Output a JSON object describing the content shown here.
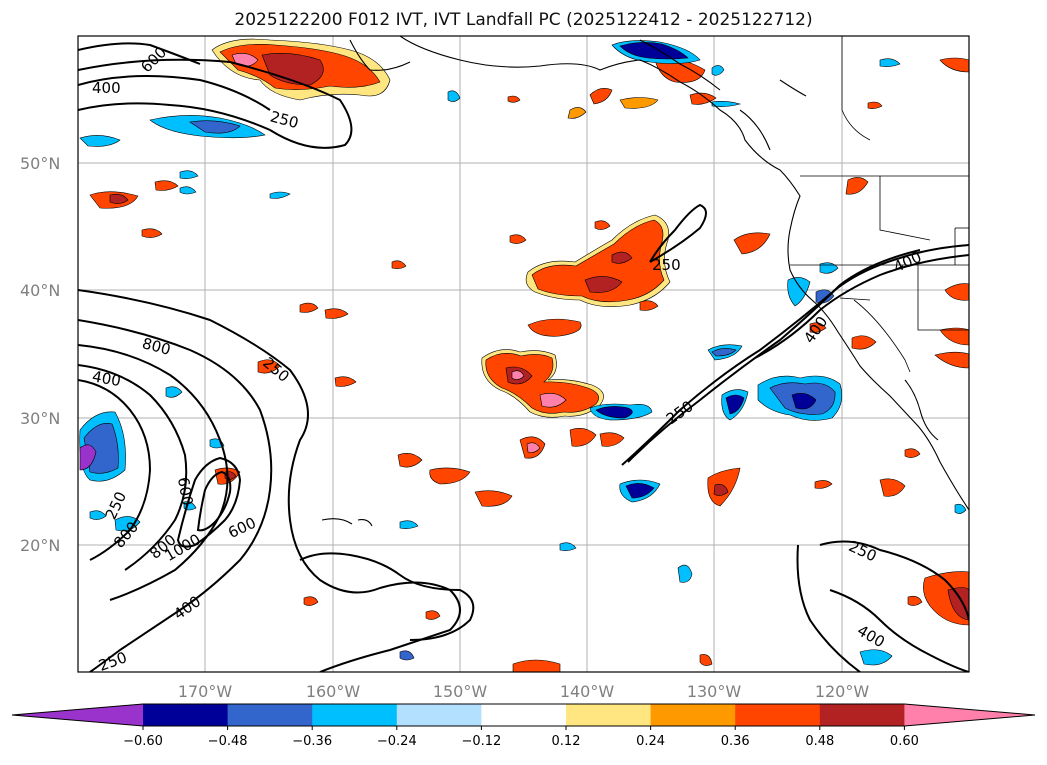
{
  "title": "2025122200 F012 IVT, IVT Landfall PC (2025122412 - 2025122712)",
  "lat_labels": [
    "50°N",
    "40°N",
    "30°N",
    "20°N"
  ],
  "lon_labels": [
    "170°W",
    "160°W",
    "150°W",
    "140°W",
    "130°W",
    "120°W"
  ],
  "colorbar": {
    "ticks": [
      "−0.60",
      "−0.48",
      "−0.36",
      "−0.24",
      "−0.12",
      "0.12",
      "0.24",
      "0.36",
      "0.48",
      "0.60"
    ],
    "colors": [
      "#9933cc",
      "#000099",
      "#3366cc",
      "#00bfff",
      "#b3e0ff",
      "#ffffff",
      "#ffe680",
      "#ff9900",
      "#ff4500",
      "#b22222",
      "#ff80aa"
    ]
  },
  "contour_labels": [
    "600",
    "400",
    "250",
    "250",
    "400",
    "400",
    "250",
    "800",
    "400",
    "250",
    "250",
    "600",
    "250",
    "800",
    "800",
    "1000",
    "600",
    "400",
    "250",
    "250",
    "400"
  ],
  "colors": {
    "pos_outer": "#ffe680",
    "pos_orange": "#ff9900",
    "pos_red": "#ff4500",
    "pos_dark": "#b22222",
    "pos_pink": "#ff80aa",
    "neg_light": "#b3e0ff",
    "neg_cyan": "#00bfff",
    "neg_blue": "#3366cc",
    "neg_navy": "#000099",
    "neg_purple": "#9933cc"
  }
}
